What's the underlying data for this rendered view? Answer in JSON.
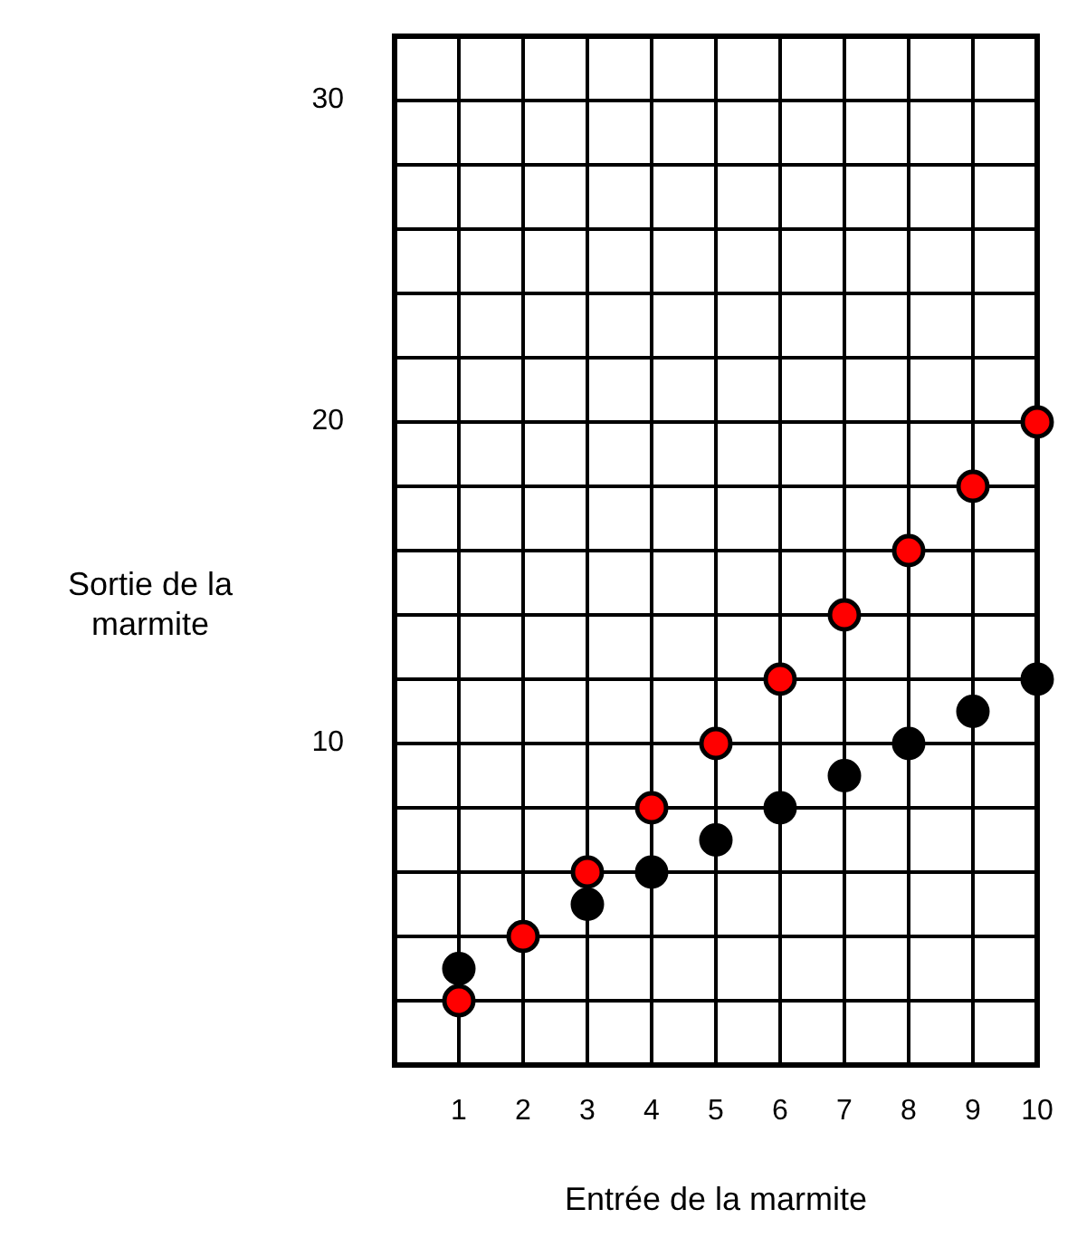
{
  "chart_data": {
    "type": "scatter",
    "xlabel": "Entrée de la marmite",
    "ylabel": "Sortie de la marmite",
    "x": [
      1,
      2,
      3,
      4,
      5,
      6,
      7,
      8,
      9,
      10
    ],
    "series": [
      {
        "color": "#000000",
        "values": [
          3,
          null,
          5,
          6,
          7,
          8,
          9,
          10,
          11,
          12
        ]
      },
      {
        "color": "#ff0000",
        "values": [
          2,
          4,
          6,
          8,
          10,
          12,
          14,
          16,
          18,
          20
        ]
      }
    ],
    "xlim": [
      0,
      10
    ],
    "ylim": [
      0,
      32
    ],
    "xticks": [
      1,
      2,
      3,
      4,
      5,
      6,
      7,
      8,
      9,
      10
    ],
    "yticks": [
      {
        "value": 2,
        "label": null
      },
      {
        "value": 4,
        "label": null
      },
      {
        "value": 6,
        "label": null
      },
      {
        "value": 8,
        "label": null
      },
      10,
      {
        "value": 12,
        "label": null
      },
      {
        "value": 14,
        "label": null
      },
      {
        "value": 16,
        "label": null
      },
      {
        "value": 18,
        "label": null
      },
      20,
      {
        "value": 22,
        "label": null
      },
      {
        "value": 24,
        "label": null
      },
      {
        "value": 26,
        "label": null
      },
      {
        "value": 28,
        "label": null
      },
      30
    ],
    "grid": true,
    "marker": "circle"
  }
}
